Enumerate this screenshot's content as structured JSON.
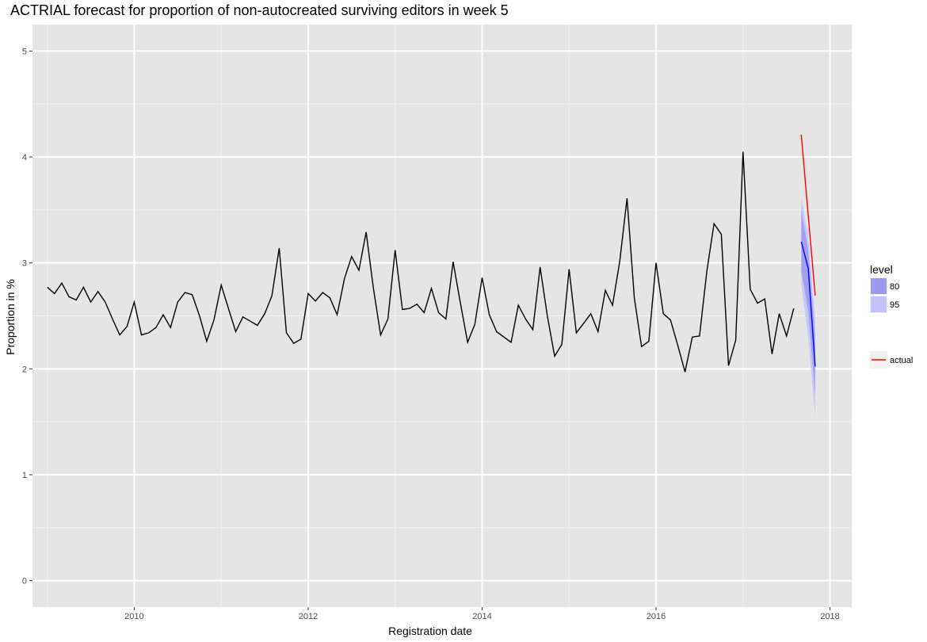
{
  "chart_data": {
    "type": "line",
    "title": "ACTRIAL forecast for proportion of non-autocreated surviving editors in week 5",
    "xlabel": "Registration date",
    "ylabel": "Proportion in %",
    "xlim": [
      2008.83,
      2018.25
    ],
    "ylim": [
      -0.25,
      5.25
    ],
    "x_ticks": [
      2010,
      2012,
      2014,
      2016,
      2018
    ],
    "x_tick_labels": [
      "2010",
      "2012",
      "2014",
      "2016",
      "2018"
    ],
    "y_ticks": [
      0,
      1,
      2,
      3,
      4,
      5
    ],
    "y_tick_labels": [
      "0",
      "1",
      "2",
      "3",
      "4",
      "5"
    ],
    "grid": true,
    "background": "#e5e5e5",
    "series": [
      {
        "color": "#000000",
        "x_start": 2009.0,
        "x_step": 0.08333333,
        "values": [
          2.77,
          2.71,
          2.81,
          2.68,
          2.65,
          2.77,
          2.63,
          2.73,
          2.63,
          2.47,
          2.32,
          2.4,
          2.63,
          2.32,
          2.34,
          2.39,
          2.51,
          2.39,
          2.63,
          2.72,
          2.7,
          2.5,
          2.26,
          2.46,
          2.79,
          2.57,
          2.35,
          2.49,
          2.45,
          2.41,
          2.52,
          2.69,
          3.14,
          2.34,
          2.24,
          2.28,
          2.71,
          2.64,
          2.72,
          2.67,
          2.51,
          2.85,
          3.06,
          2.93,
          3.29,
          2.76,
          2.32,
          2.47,
          3.12,
          2.56,
          2.57,
          2.61,
          2.53,
          2.76,
          2.53,
          2.47,
          3.01,
          2.62,
          2.25,
          2.42,
          2.86,
          2.51,
          2.35,
          2.3,
          2.25,
          2.6,
          2.47,
          2.37,
          2.96,
          2.5,
          2.12,
          2.23,
          2.94,
          2.34,
          2.43,
          2.52,
          2.35,
          2.74,
          2.6,
          3.02,
          3.61,
          2.67,
          2.21,
          2.26,
          3.0,
          2.52,
          2.46,
          2.22,
          1.97,
          2.3,
          2.31,
          2.92,
          3.37,
          3.27,
          2.03,
          2.27,
          4.05,
          2.75,
          2.62,
          2.66,
          2.14,
          2.52,
          2.31,
          2.57
        ]
      },
      {
        "name": "actual",
        "color": "#ff0000",
        "x": [
          2017.67,
          2017.83
        ],
        "values": [
          4.21,
          2.69
        ]
      },
      {
        "color": "#0000ff",
        "x": [
          2017.67,
          2017.75,
          2017.83
        ],
        "values": [
          3.2,
          2.95,
          2.02
        ]
      }
    ],
    "bands": [
      {
        "name": "95",
        "color": "#c2c2fc",
        "x": [
          2017.67,
          2017.75,
          2017.83
        ],
        "lower": [
          2.8,
          2.3,
          1.55
        ],
        "upper": [
          3.62,
          3.25,
          2.45
        ]
      },
      {
        "name": "80",
        "color": "#9a9aee",
        "x": [
          2017.67,
          2017.75,
          2017.83
        ],
        "lower": [
          2.92,
          2.55,
          1.75
        ],
        "upper": [
          3.5,
          3.12,
          2.3
        ]
      }
    ],
    "legend": {
      "title": "level",
      "placement": "right",
      "items": [
        {
          "label": "80",
          "color": "#9a9aee"
        },
        {
          "label": "95",
          "color": "#c2c2fc"
        }
      ],
      "line_items": [
        {
          "label": "actual",
          "color": "#ff0000"
        }
      ]
    }
  }
}
